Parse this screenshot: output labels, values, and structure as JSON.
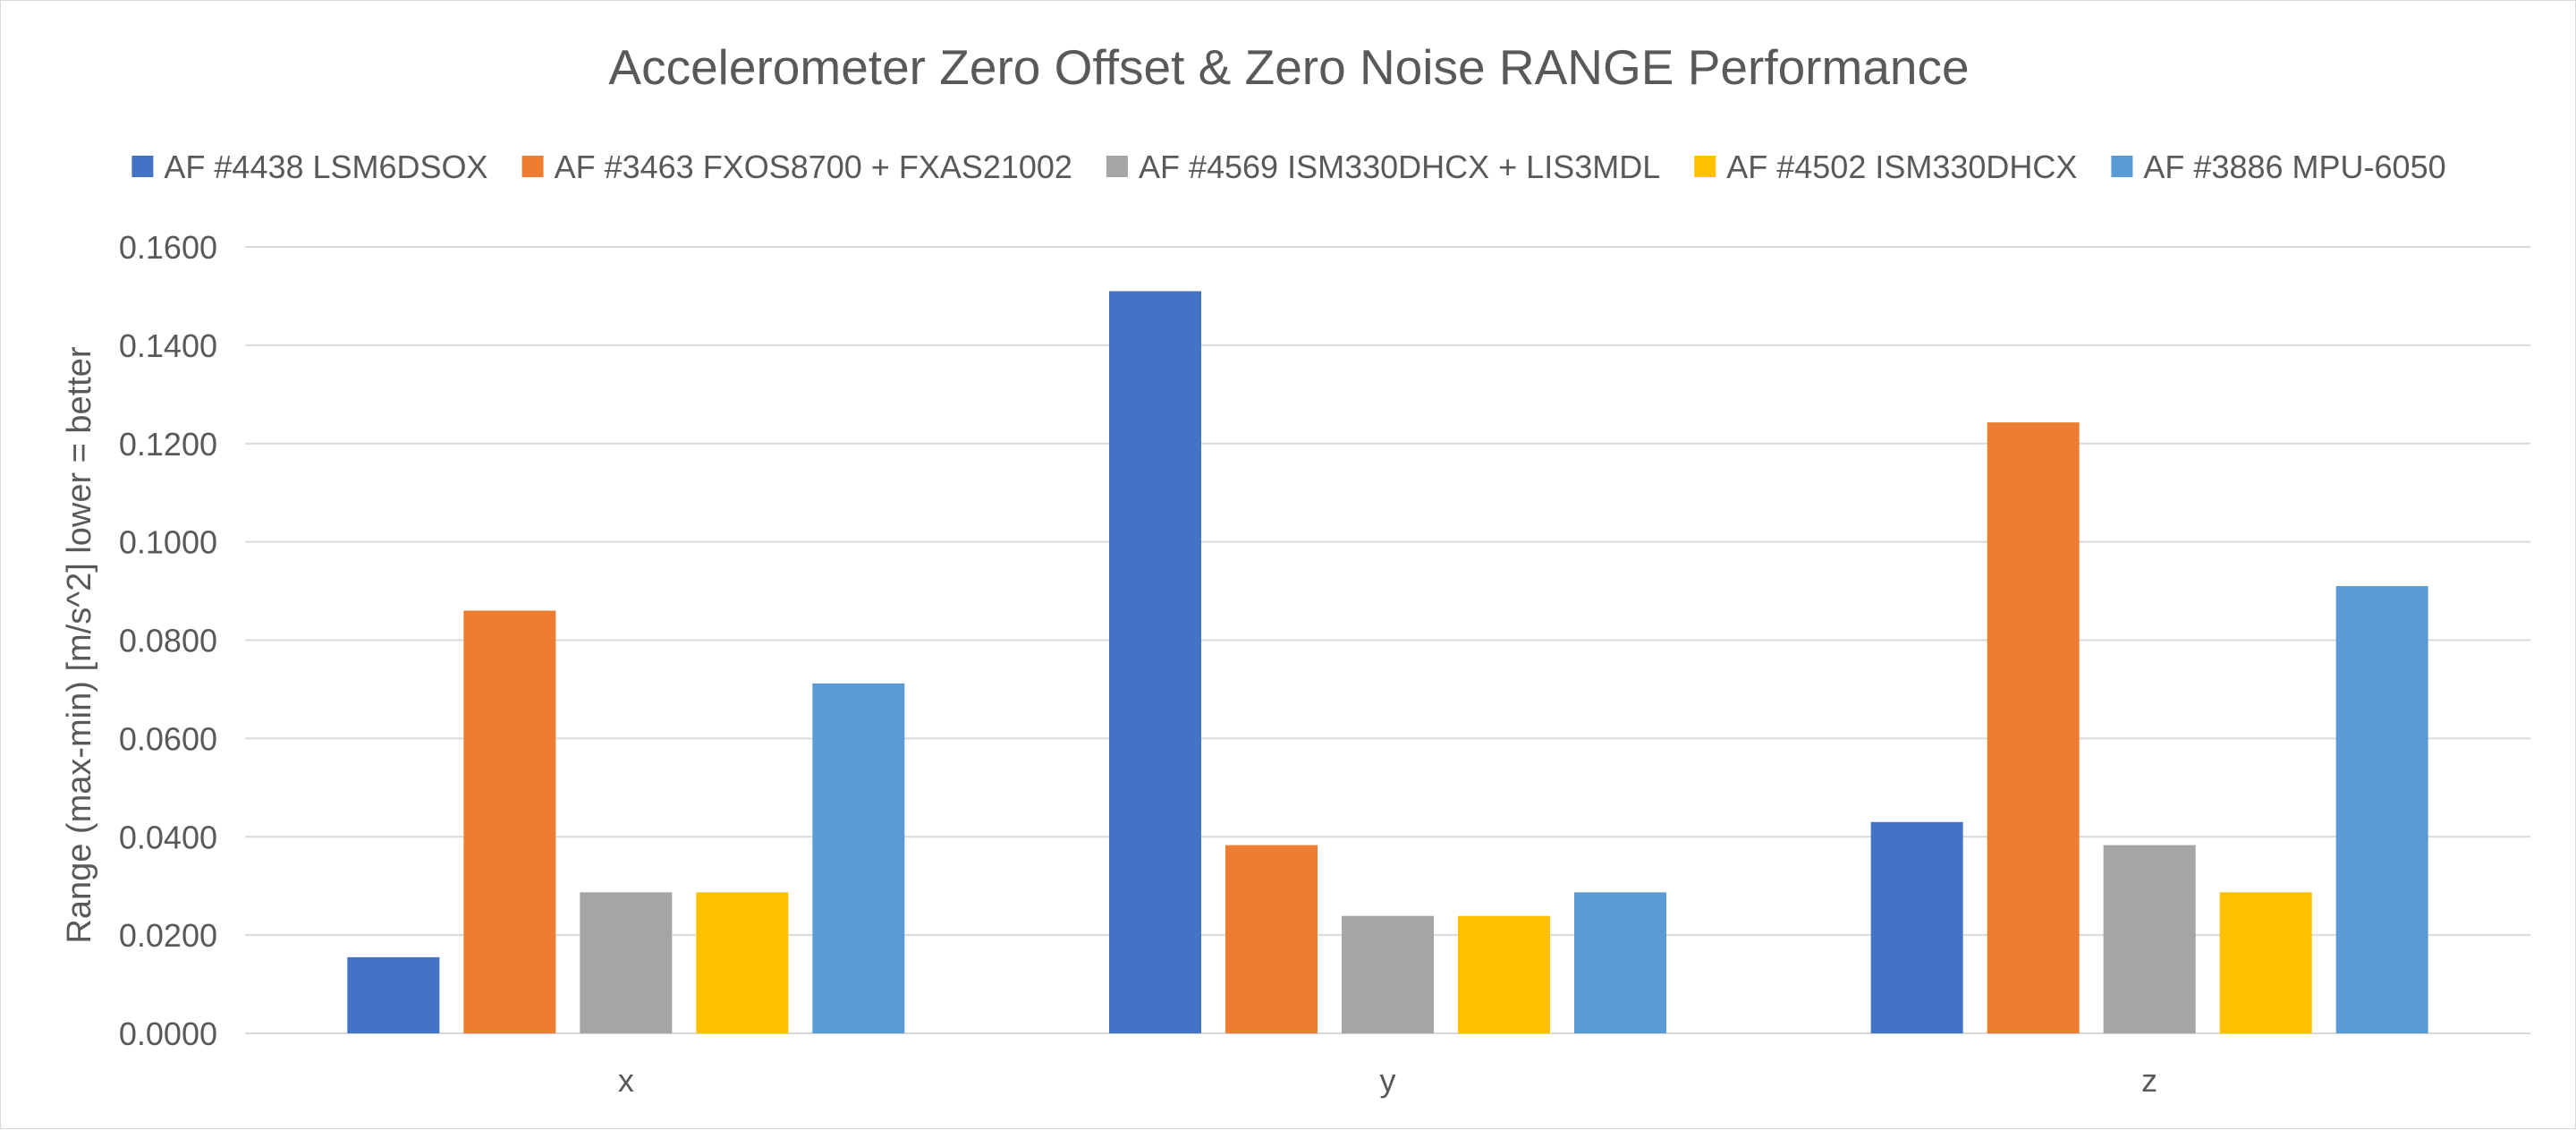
{
  "chart_data": {
    "type": "bar",
    "title": "Accelerometer Zero Offset & Zero Noise RANGE Performance",
    "ylabel": "Range (max-min) [m/s^2]  lower = better",
    "xlabel": "",
    "categories": [
      "x",
      "y",
      "z"
    ],
    "ylim": [
      0,
      0.16
    ],
    "yticks": [
      0.0,
      0.02,
      0.04,
      0.06,
      0.08,
      0.1,
      0.12,
      0.14,
      0.16
    ],
    "ytick_labels": [
      "0.0000",
      "0.0200",
      "0.0400",
      "0.0600",
      "0.0800",
      "0.1000",
      "0.1200",
      "0.1400",
      "0.1600"
    ],
    "grid": true,
    "legend_position": "top",
    "series": [
      {
        "name": "AF #4438 LSM6DSOX",
        "color": "#4472C4",
        "values": [
          0.0155,
          0.151,
          0.043
        ]
      },
      {
        "name": "AF #3463 FXOS8700 + FXAS21002",
        "color": "#ED7D31",
        "values": [
          0.086,
          0.0383,
          0.1243
        ]
      },
      {
        "name": "AF #4569 ISM330DHCX + LIS3MDL",
        "color": "#A5A5A5",
        "values": [
          0.0287,
          0.0239,
          0.0383
        ]
      },
      {
        "name": "AF #4502 ISM330DHCX",
        "color": "#FFC000",
        "values": [
          0.0287,
          0.0239,
          0.0287
        ]
      },
      {
        "name": "AF #3886 MPU-6050",
        "color": "#5B9BD5",
        "values": [
          0.0712,
          0.0287,
          0.091
        ]
      }
    ]
  }
}
